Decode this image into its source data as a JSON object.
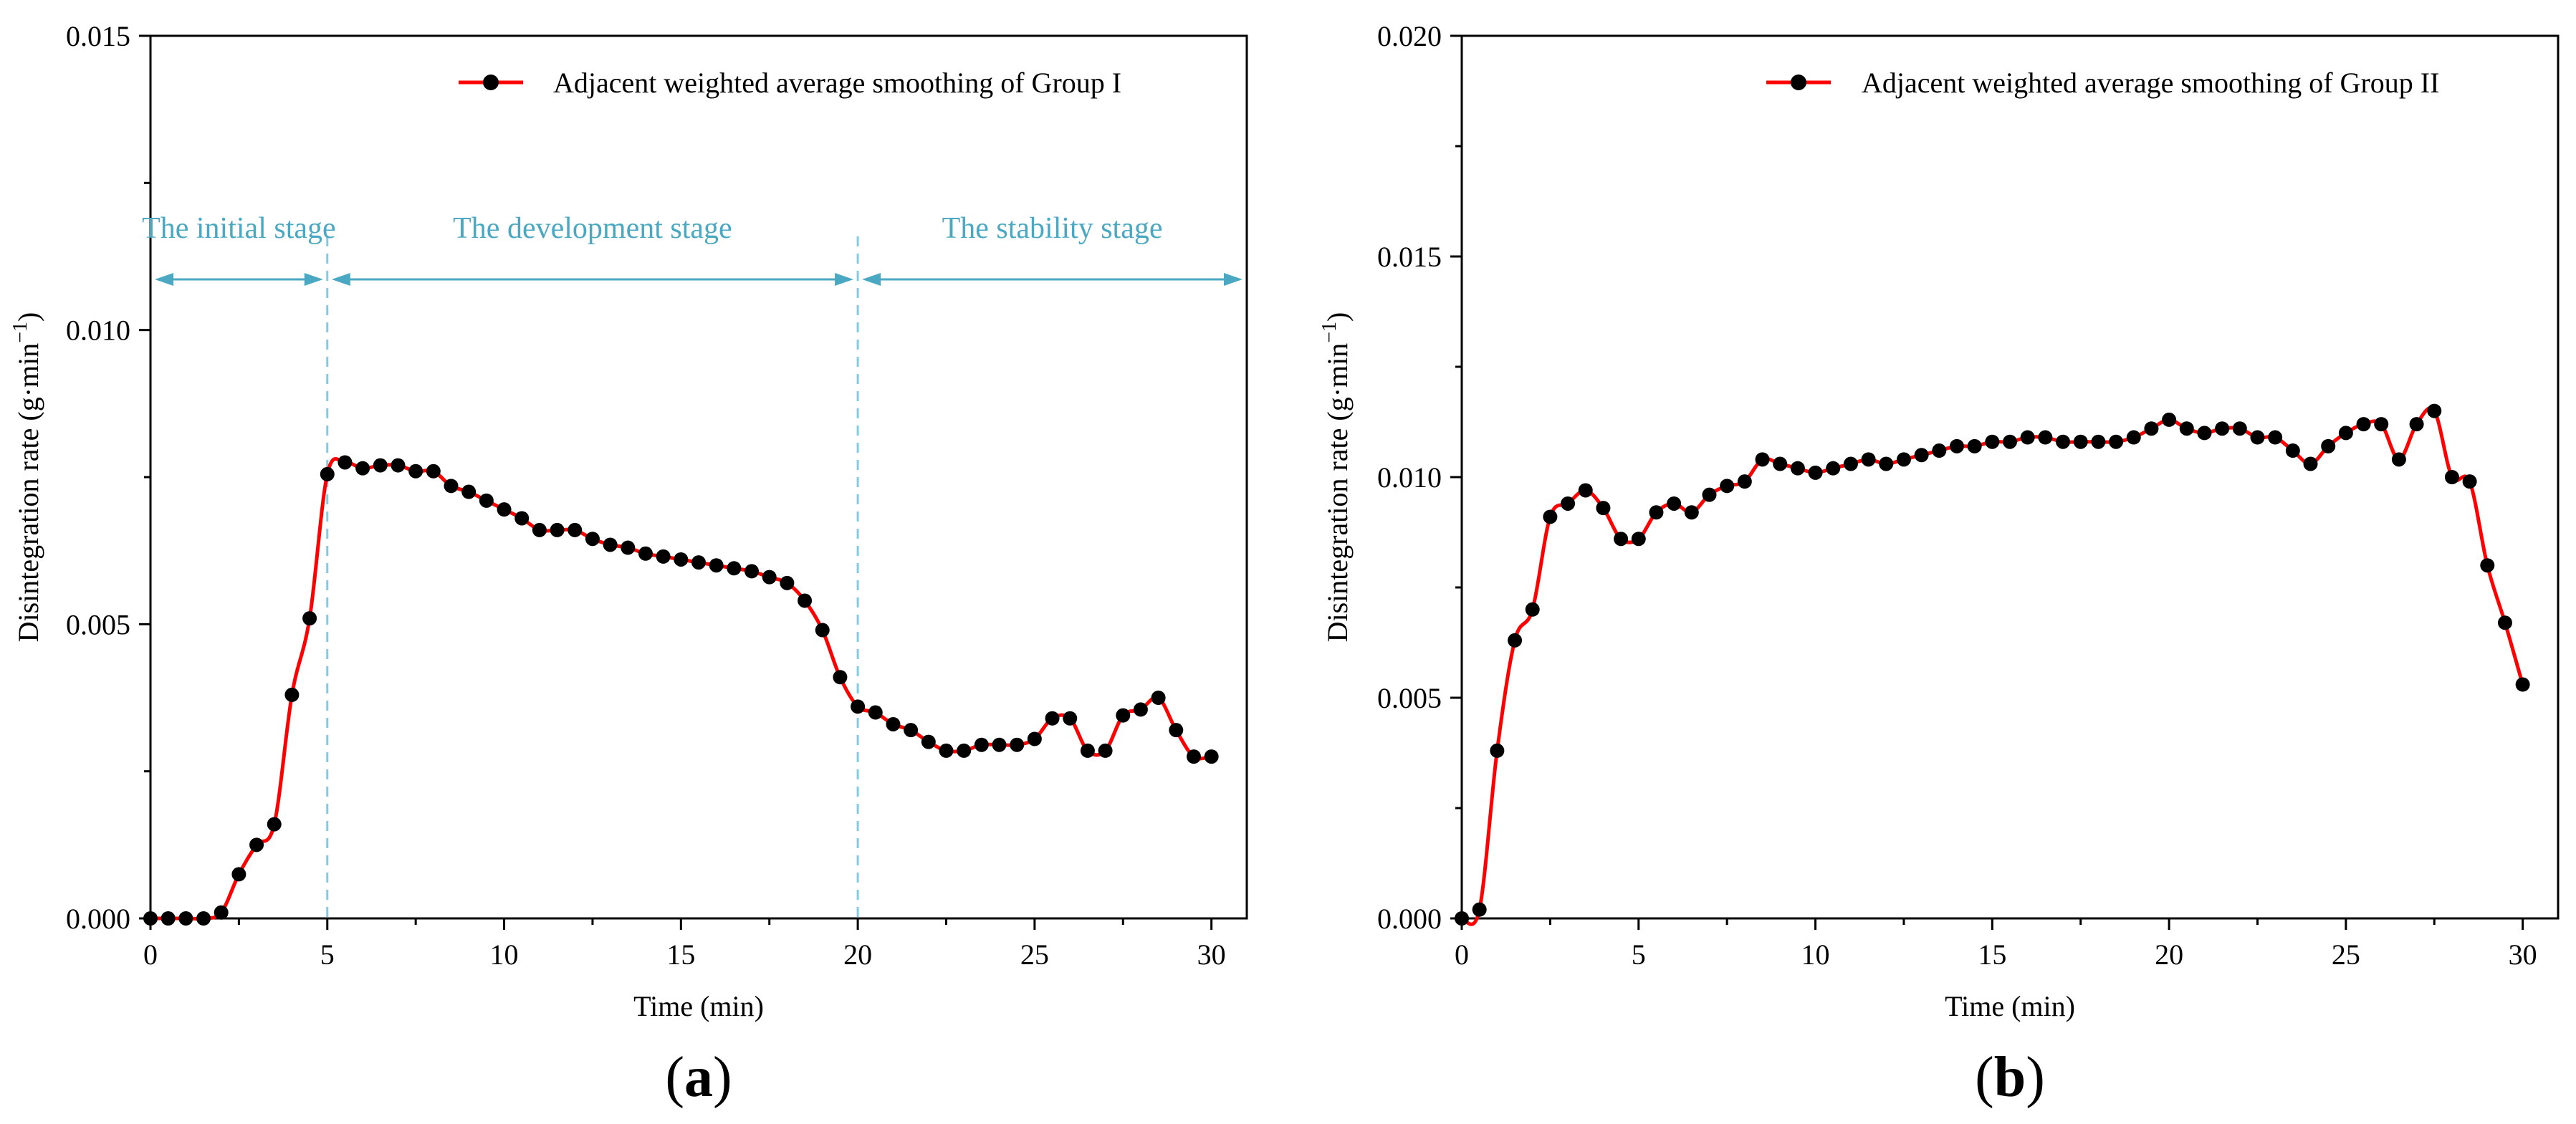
{
  "colors": {
    "line": "#ff0000",
    "marker": "#000000",
    "stage": "#4aa8c2",
    "divider": "#7ecde3"
  },
  "chart_data": [
    {
      "type": "line",
      "panel_label": "a",
      "xlabel": "Time (min)",
      "ylabel": "Disintegration rate (g·min",
      "ylabel_sup": "−1",
      "ylabel_close": ")",
      "xlim": [
        0,
        31
      ],
      "ylim": [
        0,
        0.015
      ],
      "xticks": [
        "0",
        "5",
        "10",
        "15",
        "20",
        "25",
        "30"
      ],
      "yticks": [
        "0.000",
        "0.005",
        "0.010",
        "0.015"
      ],
      "legend": "top-right",
      "series": [
        {
          "name": "Adjacent weighted average smoothing of Group I",
          "x": [
            0,
            0.5,
            1,
            1.5,
            2,
            2.5,
            3,
            3.5,
            4,
            4.5,
            5,
            5.5,
            6,
            6.5,
            7,
            7.5,
            8,
            8.5,
            9,
            9.5,
            10,
            10.5,
            11,
            11.5,
            12,
            12.5,
            13,
            13.5,
            14,
            14.5,
            15,
            15.5,
            16,
            16.5,
            17,
            17.5,
            18,
            18.5,
            19,
            19.5,
            20,
            20.5,
            21,
            21.5,
            22,
            22.5,
            23,
            23.5,
            24,
            24.5,
            25,
            25.5,
            26,
            26.5,
            27,
            27.5,
            28,
            28.5,
            29,
            29.5,
            30
          ],
          "y": [
            0,
            0,
            0,
            0,
            0.0001,
            0.00075,
            0.00125,
            0.0016,
            0.0038,
            0.0051,
            0.00755,
            0.00775,
            0.00765,
            0.0077,
            0.0077,
            0.0076,
            0.0076,
            0.00735,
            0.00725,
            0.0071,
            0.00695,
            0.0068,
            0.0066,
            0.0066,
            0.0066,
            0.00645,
            0.00635,
            0.0063,
            0.0062,
            0.00615,
            0.0061,
            0.00605,
            0.006,
            0.00595,
            0.0059,
            0.0058,
            0.0057,
            0.0054,
            0.0049,
            0.0041,
            0.0036,
            0.0035,
            0.0033,
            0.0032,
            0.003,
            0.00285,
            0.00285,
            0.00295,
            0.00295,
            0.00295,
            0.00305,
            0.0034,
            0.0034,
            0.00285,
            0.00285,
            0.00345,
            0.00355,
            0.00375,
            0.0032,
            0.00275,
            0.00275
          ]
        }
      ],
      "stages": [
        {
          "label": "The initial stage",
          "from": 0,
          "to": 5
        },
        {
          "label": "The development stage",
          "from": 5,
          "to": 20
        },
        {
          "label": "The stability stage",
          "from": 20,
          "to": 31
        }
      ],
      "dividers": [
        5,
        20
      ]
    },
    {
      "type": "line",
      "panel_label": "b",
      "xlabel": "Time (min)",
      "ylabel": "Disintegration rate (g·min",
      "ylabel_sup": "−1",
      "ylabel_close": ")",
      "xlim": [
        0,
        31
      ],
      "ylim": [
        0,
        0.02
      ],
      "xticks": [
        "0",
        "5",
        "10",
        "15",
        "20",
        "25",
        "30"
      ],
      "yticks": [
        "0.000",
        "0.005",
        "0.010",
        "0.015",
        "0.020"
      ],
      "legend": "top-right",
      "series": [
        {
          "name": "Adjacent weighted average smoothing of Group II",
          "x": [
            0,
            0.5,
            1,
            1.5,
            2,
            2.5,
            3,
            3.5,
            4,
            4.5,
            5,
            5.5,
            6,
            6.5,
            7,
            7.5,
            8,
            8.5,
            9,
            9.5,
            10,
            10.5,
            11,
            11.5,
            12,
            12.5,
            13,
            13.5,
            14,
            14.5,
            15,
            15.5,
            16,
            16.5,
            17,
            17.5,
            18,
            18.5,
            19,
            19.5,
            20,
            20.5,
            21,
            21.5,
            22,
            22.5,
            23,
            23.5,
            24,
            24.5,
            25,
            25.5,
            26,
            26.5,
            27,
            27.5,
            28,
            28.5,
            29,
            29.5,
            30
          ],
          "y": [
            0,
            0.0002,
            0.0038,
            0.0063,
            0.007,
            0.0091,
            0.0094,
            0.0097,
            0.0093,
            0.0086,
            0.0086,
            0.0092,
            0.0094,
            0.0092,
            0.0096,
            0.0098,
            0.0099,
            0.0104,
            0.0103,
            0.0102,
            0.0101,
            0.0102,
            0.0103,
            0.0104,
            0.0103,
            0.0104,
            0.0105,
            0.0106,
            0.0107,
            0.0107,
            0.0108,
            0.0108,
            0.0109,
            0.0109,
            0.0108,
            0.0108,
            0.0108,
            0.0108,
            0.0109,
            0.0111,
            0.0113,
            0.0111,
            0.011,
            0.0111,
            0.0111,
            0.0109,
            0.0109,
            0.0106,
            0.0103,
            0.0107,
            0.011,
            0.0112,
            0.0112,
            0.0104,
            0.0112,
            0.0115,
            0.01,
            0.0099,
            0.008,
            0.0067,
            0.0053
          ]
        }
      ]
    }
  ]
}
